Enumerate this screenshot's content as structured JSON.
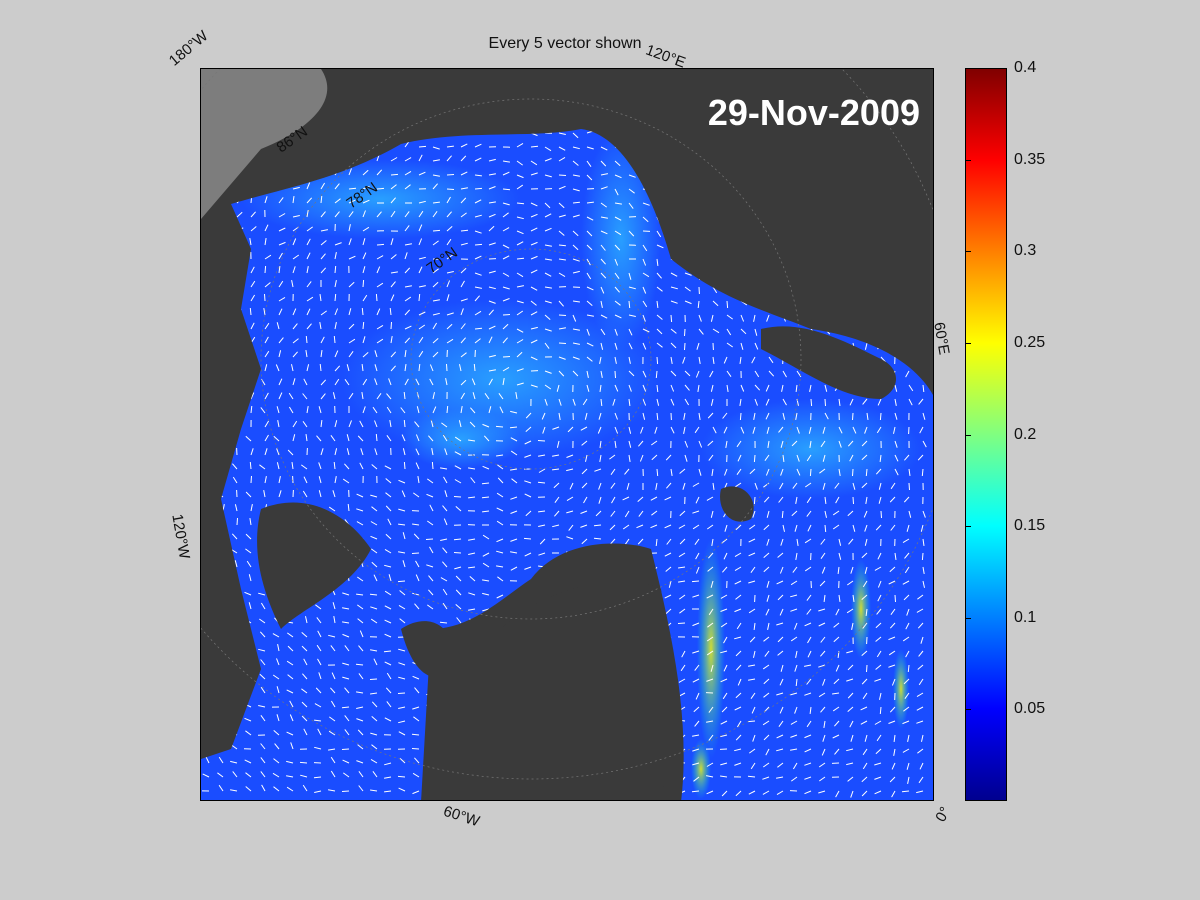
{
  "title": "Every 5 vector shown",
  "date": "29-Nov-2009",
  "coordinate_labels": {
    "lon_180w": "180°W",
    "lon_120e": "120°E",
    "lon_60e": "60°E",
    "lon_120w": "120°W",
    "lon_60w": "60°W",
    "lon_0": "0°",
    "lat_86n": "86°N",
    "lat_78n": "78°N",
    "lat_70n": "70°N"
  },
  "colorbar": {
    "range": [
      0,
      0.4
    ],
    "ticks": [
      "0.4",
      "0.35",
      "0.3",
      "0.25",
      "0.2",
      "0.15",
      "0.1",
      "0.05"
    ],
    "colormap": "jet"
  },
  "colors": {
    "background": "#cccccc",
    "land": "#3a3a3a",
    "ocean_base": "#1a4dff",
    "vector": "#ffffff"
  }
}
